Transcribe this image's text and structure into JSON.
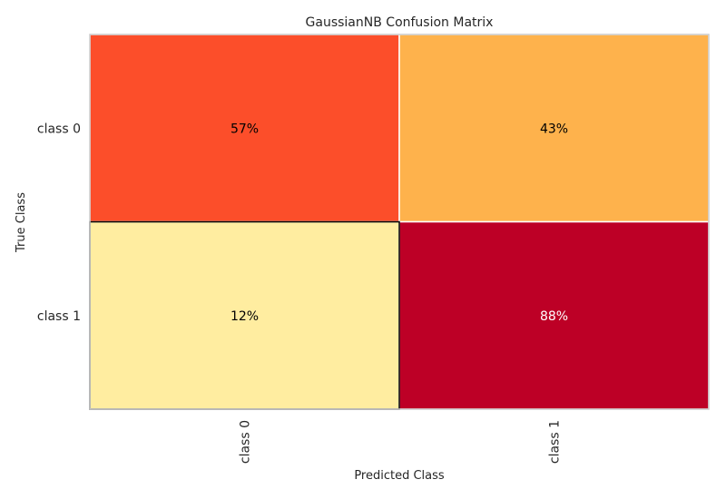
{
  "chart_data": {
    "type": "heatmap",
    "title": "GaussianNB Confusion Matrix",
    "xlabel": "Predicted Class",
    "ylabel": "True Class",
    "x_categories": [
      "class 0",
      "class 1"
    ],
    "y_categories": [
      "class 0",
      "class 1"
    ],
    "values": [
      [
        57,
        43
      ],
      [
        12,
        88
      ]
    ],
    "cell_labels": [
      [
        "57%",
        "43%"
      ],
      [
        "12%",
        "88%"
      ]
    ],
    "colormap": "YlOrRd",
    "cell_colors": [
      [
        "#fc4e2a",
        "#feb24c"
      ],
      [
        "#ffeda0",
        "#bd0026"
      ]
    ],
    "cell_text_colors": [
      [
        "#000000",
        "#000000"
      ],
      [
        "#000000",
        "#ffffff"
      ]
    ],
    "highlight_color": "#000000",
    "grid_color": "#ffffff",
    "frame_color": "#cccccc"
  }
}
